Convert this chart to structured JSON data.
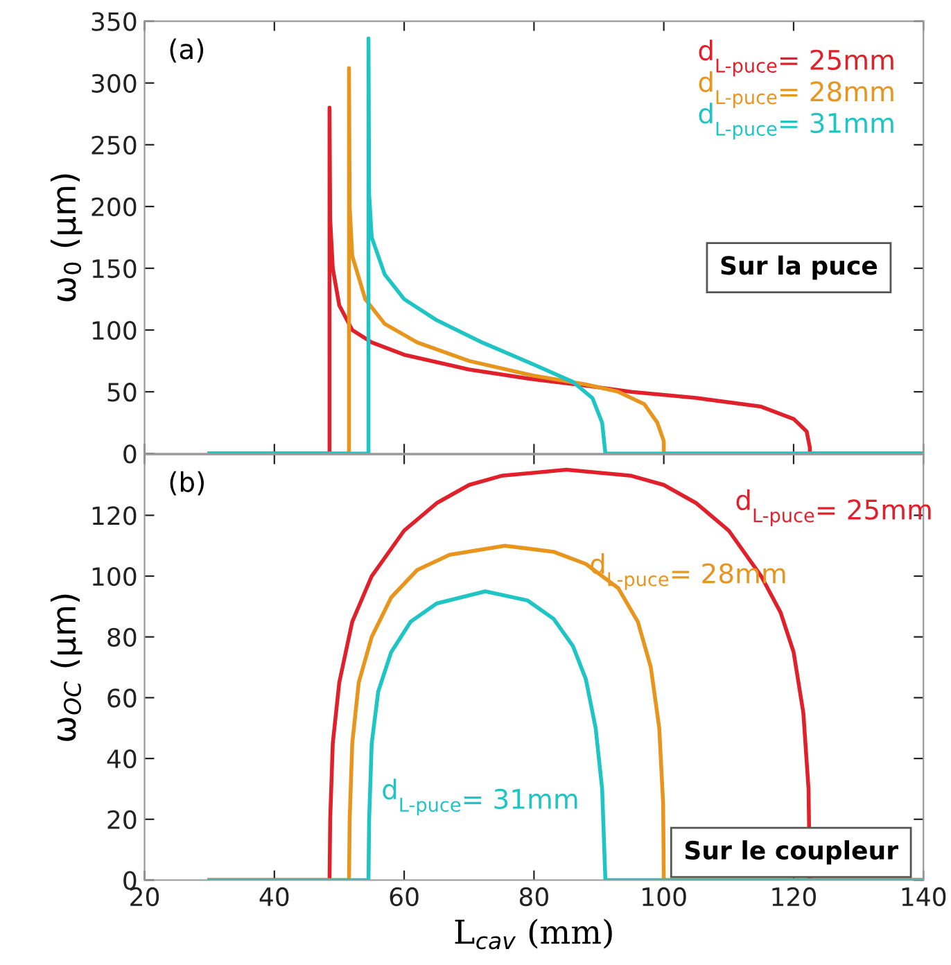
{
  "chart_data": [
    {
      "type": "line",
      "ylabel": "ω$_{0}$ (μm)",
      "xlim": [
        20,
        140
      ],
      "xticks": [
        20,
        40,
        60,
        80,
        100,
        120,
        140
      ],
      "ylim": [
        0,
        350
      ],
      "yticks": [
        0,
        50,
        100,
        150,
        200,
        250,
        300,
        350
      ],
      "tick_labels": "y",
      "grid": false,
      "annotations": [
        "(a)",
        "Sur la puce"
      ],
      "series": [
        {
          "name": "d$_{L-puce}$= 25mm",
          "color": "#e0202a",
          "x": [
            30,
            48.5,
            48.5,
            48.6,
            49,
            50,
            52,
            55,
            60,
            70,
            80,
            88,
            95,
            105,
            115,
            120,
            122,
            122.5,
            122.5,
            140
          ],
          "values": [
            0,
            0,
            280,
            190,
            150,
            120,
            100,
            90,
            80,
            68,
            60,
            55,
            50,
            45,
            38,
            28,
            18,
            5,
            0,
            0
          ]
        },
        {
          "name": "d$_{L-puce}$= 28mm",
          "color": "#e8951e",
          "x": [
            30,
            51.5,
            51.5,
            51.6,
            52,
            54,
            57,
            62,
            70,
            80,
            88,
            93,
            97,
            99,
            100,
            100,
            140
          ],
          "values": [
            0,
            0,
            312,
            200,
            160,
            125,
            105,
            90,
            75,
            63,
            56,
            50,
            40,
            25,
            10,
            0,
            0
          ]
        },
        {
          "name": "d$_{L-puce}$= 31mm",
          "color": "#1fc4c4",
          "x": [
            30,
            54.5,
            54.5,
            54.6,
            55,
            57,
            60,
            65,
            72,
            80,
            86,
            89,
            90.5,
            91,
            140
          ],
          "values": [
            0,
            0,
            336,
            210,
            175,
            145,
            125,
            108,
            90,
            72,
            58,
            45,
            25,
            0,
            0
          ]
        }
      ]
    },
    {
      "type": "line",
      "xlabel": "L$_{cav}$ (mm)",
      "ylabel": "ω$_{OC}$ (μm)",
      "xlim": [
        20,
        140
      ],
      "xticks": [
        20,
        40,
        60,
        80,
        100,
        120,
        140
      ],
      "ylim": [
        0,
        140
      ],
      "yticks": [
        0,
        20,
        40,
        60,
        80,
        100,
        120
      ],
      "grid": false,
      "annotations": [
        "(b)",
        "Sur le coupleur"
      ],
      "series": [
        {
          "name": "d$_{L-puce}$= 25mm",
          "color": "#e0202a",
          "x": [
            30,
            48.5,
            48.6,
            49,
            50,
            52,
            55,
            60,
            65,
            70,
            75,
            85,
            95,
            100,
            105,
            110,
            115,
            118,
            120,
            121.5,
            122.3,
            122.5,
            140
          ],
          "values": [
            0,
            0,
            20,
            45,
            65,
            85,
            100,
            115,
            124,
            130,
            133,
            135,
            133,
            130,
            124,
            115,
            100,
            88,
            75,
            55,
            30,
            0,
            0
          ]
        },
        {
          "name": "d$_{L-puce}$= 28mm",
          "color": "#e8951e",
          "x": [
            30,
            51.5,
            51.6,
            52,
            53,
            55,
            58,
            62,
            67,
            75.5,
            83,
            88,
            93,
            96,
            98,
            99.3,
            99.9,
            100,
            140
          ],
          "values": [
            0,
            0,
            20,
            45,
            65,
            80,
            93,
            102,
            107,
            110,
            108,
            104,
            96,
            85,
            70,
            50,
            25,
            0,
            0
          ]
        },
        {
          "name": "d$_{L-puce}$= 31mm",
          "color": "#1fc4c4",
          "x": [
            30,
            54.5,
            54.6,
            55,
            56,
            58,
            61,
            65,
            72.5,
            79,
            83,
            86,
            88,
            89.5,
            90.5,
            91,
            140
          ],
          "values": [
            0,
            0,
            20,
            45,
            62,
            75,
            85,
            91,
            95,
            92,
            86,
            77,
            66,
            50,
            30,
            0,
            0
          ]
        }
      ]
    }
  ]
}
